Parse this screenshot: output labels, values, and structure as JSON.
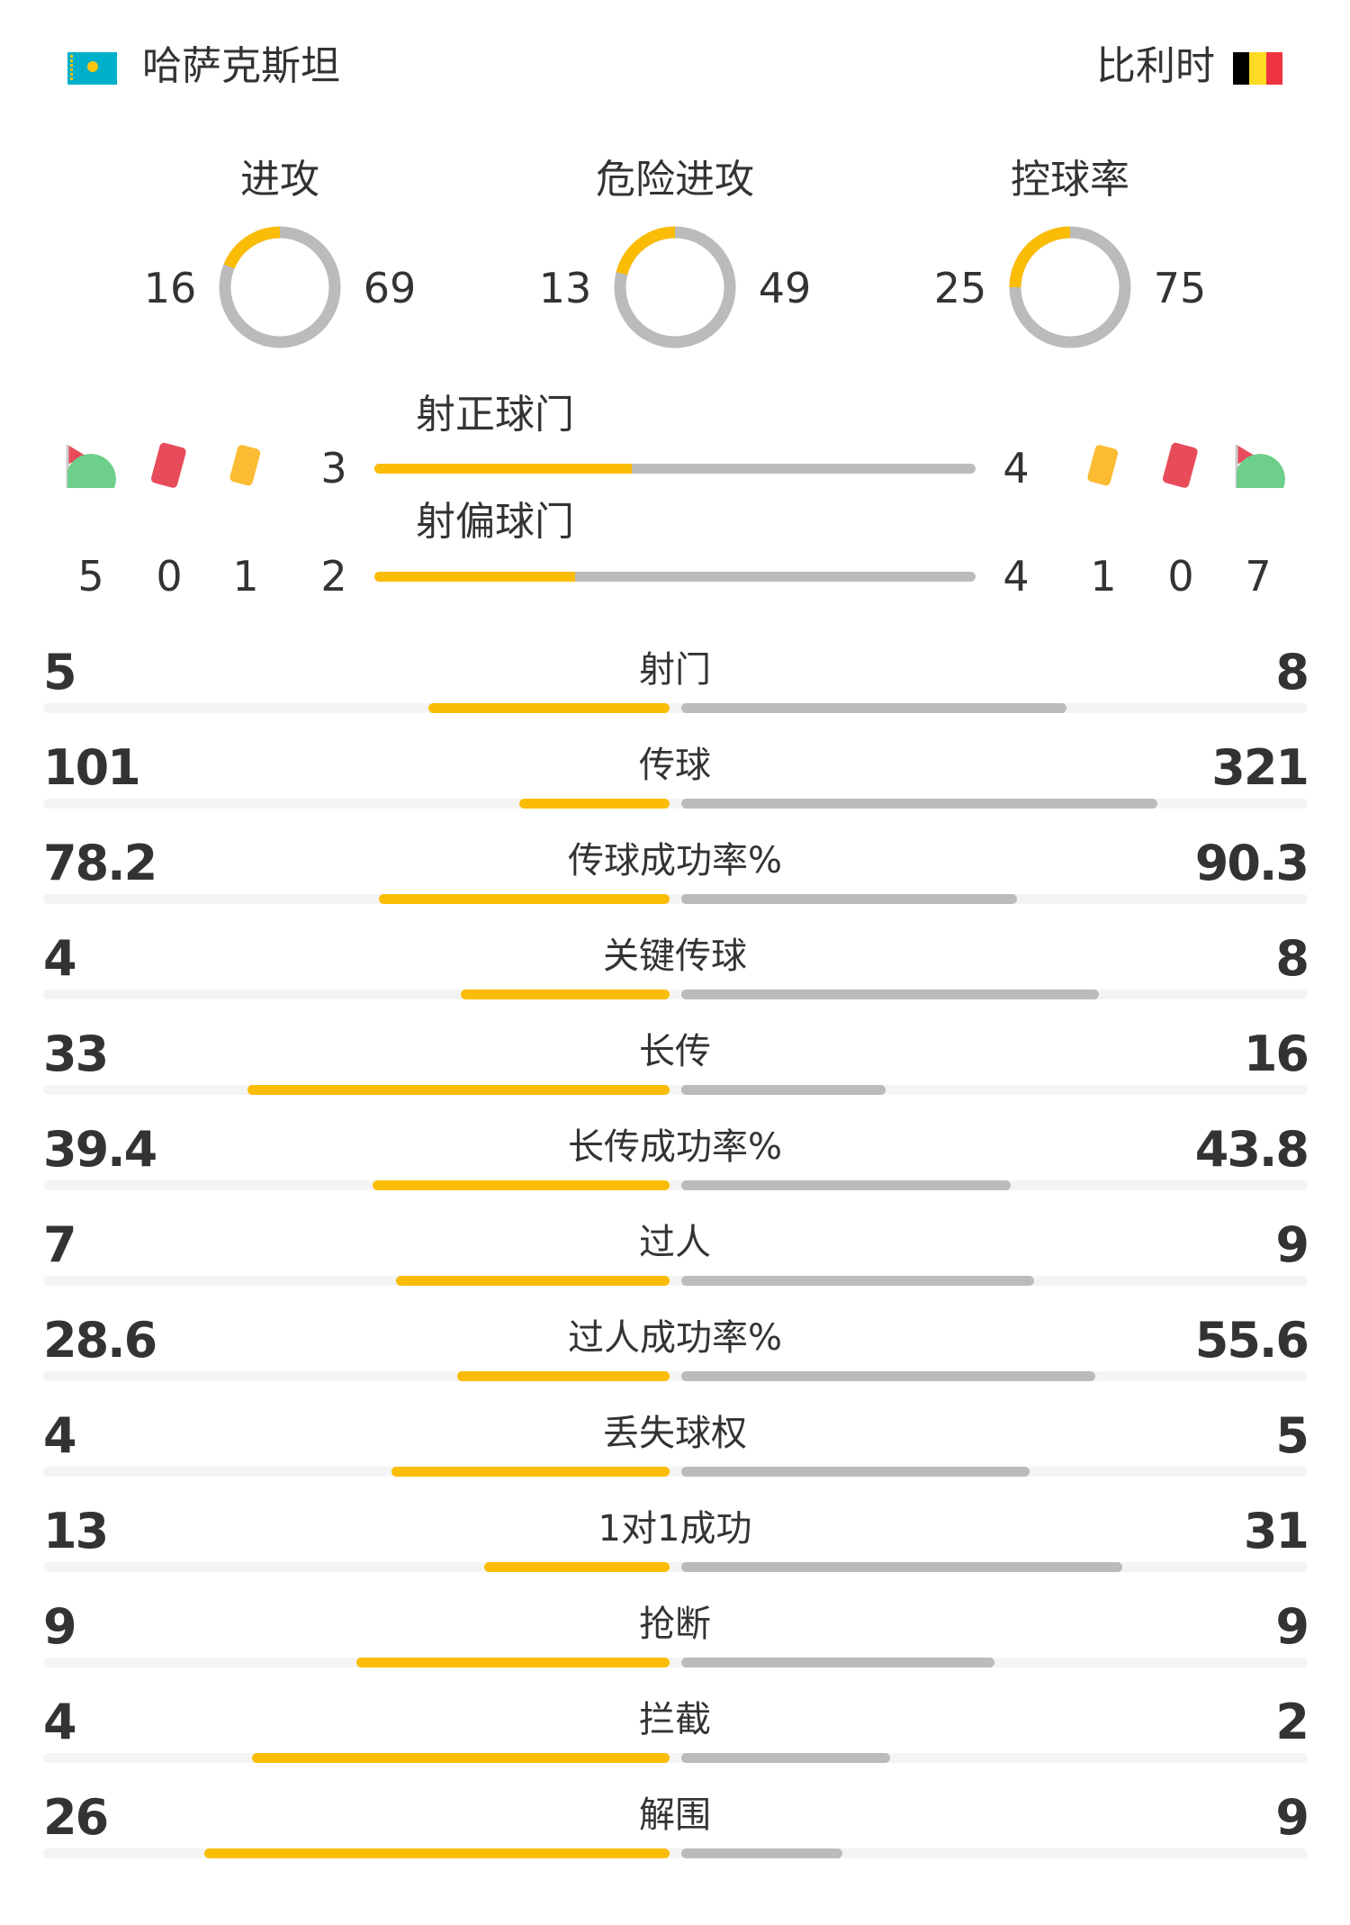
{
  "home": {
    "name": "哈萨克斯坦",
    "flag": "kazakhstan-flag"
  },
  "away": {
    "name": "比利时",
    "flag": "belgium-flag"
  },
  "colors": {
    "home": "#fbbc05",
    "away": "#bbbbbb",
    "track": "#f4f4f4"
  },
  "donuts": [
    {
      "label": "进攻",
      "home": 16,
      "away": 69
    },
    {
      "label": "危险进攻",
      "home": 13,
      "away": 49
    },
    {
      "label": "控球率",
      "home": 25,
      "away": 75
    }
  ],
  "on_target": {
    "label": "射正球门",
    "home": 3,
    "away": 4
  },
  "off_target": {
    "label": "射偏球门",
    "home": 2,
    "away": 4
  },
  "events": {
    "home": {
      "corners": 5,
      "red_cards": 0,
      "yellow_cards": 1
    },
    "away": {
      "corners": 7,
      "red_cards": 0,
      "yellow_cards": 1
    }
  },
  "stats": [
    {
      "label": "射门",
      "home": "5",
      "away": "8"
    },
    {
      "label": "传球",
      "home": "101",
      "away": "321"
    },
    {
      "label": "传球成功率%",
      "home": "78.2",
      "away": "90.3"
    },
    {
      "label": "关键传球",
      "home": "4",
      "away": "8"
    },
    {
      "label": "长传",
      "home": "33",
      "away": "16"
    },
    {
      "label": "长传成功率%",
      "home": "39.4",
      "away": "43.8"
    },
    {
      "label": "过人",
      "home": "7",
      "away": "9"
    },
    {
      "label": "过人成功率%",
      "home": "28.6",
      "away": "55.6"
    },
    {
      "label": "丢失球权",
      "home": "4",
      "away": "5"
    },
    {
      "label": "1对1成功",
      "home": "13",
      "away": "31"
    },
    {
      "label": "抢断",
      "home": "9",
      "away": "9"
    },
    {
      "label": "拦截",
      "home": "4",
      "away": "2"
    },
    {
      "label": "解围",
      "home": "26",
      "away": "9"
    }
  ]
}
